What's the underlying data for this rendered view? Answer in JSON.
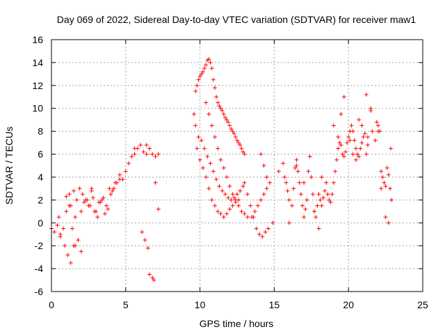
{
  "chart_data": {
    "type": "scatter",
    "title": "Day 069 of 2022, Sidereal Day-to-day VTEC variation (SDTVAR) for receiver maw1",
    "xlabel": "GPS time / hours",
    "ylabel": "SDTVAR / TECUs",
    "xlim": [
      0,
      25
    ],
    "ylim": [
      -6,
      16
    ],
    "xticks": [
      0,
      5,
      10,
      15,
      20,
      25
    ],
    "yticks": [
      -6,
      -4,
      -2,
      0,
      2,
      4,
      6,
      8,
      10,
      12,
      14,
      16
    ],
    "xtick_labels": [
      "0",
      "5",
      "10",
      "15",
      "20",
      "25"
    ],
    "ytick_labels": [
      "-6",
      "-4",
      "-2",
      "0",
      "2",
      "4",
      "6",
      "8",
      "10",
      "12",
      "14",
      "16"
    ],
    "grid": true,
    "marker": "+",
    "color": "#ff0000",
    "series": [
      {
        "name": "maw1",
        "x": [
          0.0,
          0.2,
          0.4,
          0.5,
          0.6,
          0.8,
          1.0,
          1.2,
          1.4,
          1.5,
          1.6,
          1.8,
          2.0,
          2.2,
          2.4,
          2.6,
          2.8,
          3.0,
          3.2,
          3.4,
          3.6,
          3.8,
          4.0,
          4.2,
          4.4,
          4.6,
          4.8,
          5.0,
          5.2,
          5.4,
          5.6,
          5.8,
          6.0,
          6.2,
          6.4,
          6.6,
          6.8,
          7.0,
          7.2,
          6.1,
          6.3,
          6.5,
          6.6,
          6.8,
          6.9,
          7.0,
          7.2,
          1.2,
          1.3,
          1.5,
          1.7,
          1.9,
          2.1,
          2.3,
          2.5,
          2.7,
          2.9,
          3.1,
          3.3,
          3.5,
          3.7,
          3.9,
          4.1,
          4.3,
          0.6,
          0.9,
          1.1,
          1.3,
          1.6,
          1.8,
          2.0,
          1.0,
          2.7,
          4.6,
          5.6,
          6.4,
          9.6,
          9.7,
          9.8,
          9.9,
          10.0,
          10.1,
          10.2,
          10.3,
          10.4,
          10.5,
          10.6,
          10.7,
          10.8,
          10.9,
          11.0,
          11.1,
          11.2,
          11.3,
          11.4,
          11.5,
          11.6,
          11.7,
          11.8,
          11.9,
          12.0,
          12.1,
          12.2,
          12.3,
          12.4,
          12.5,
          12.6,
          12.7,
          12.8,
          12.9,
          13.0,
          9.7,
          9.9,
          10.1,
          10.3,
          10.5,
          10.7,
          10.9,
          11.1,
          11.3,
          11.5,
          11.7,
          11.9,
          12.1,
          12.3,
          12.5,
          12.7,
          12.9,
          9.8,
          10.0,
          10.2,
          10.4,
          10.6,
          10.8,
          11.0,
          11.2,
          11.4,
          11.6,
          11.8,
          12.0,
          12.2,
          12.4,
          12.6,
          10.4,
          10.6,
          10.8,
          11.0,
          11.2,
          11.4,
          11.6,
          11.8,
          12.0,
          12.2,
          12.4,
          12.6,
          12.8,
          13.0,
          13.2,
          13.0,
          13.2,
          13.4,
          13.6,
          13.8,
          14.0,
          14.2,
          14.4,
          14.6,
          13.5,
          13.7,
          13.9,
          14.1,
          14.3,
          14.5,
          14.7,
          14.1,
          14.3,
          14.5,
          14.9,
          15.3,
          15.6,
          15.7,
          15.8,
          15.9,
          16.0,
          16.2,
          16.3,
          16.4,
          16.5,
          16.6,
          16.7,
          16.8,
          16.9,
          17.0,
          17.1,
          17.2,
          17.3,
          17.4,
          17.5,
          17.6,
          17.7,
          17.8,
          17.9,
          18.0,
          18.1,
          18.2,
          18.3,
          18.4,
          18.5,
          18.6,
          18.7,
          18.8,
          18.9,
          19.0,
          19.1,
          19.2,
          19.3,
          19.4,
          19.5,
          19.6,
          19.7,
          19.8,
          19.9,
          20.0,
          20.1,
          20.2,
          20.3,
          20.4,
          20.5,
          20.6,
          20.7,
          20.8,
          20.9,
          21.0,
          21.1,
          21.2,
          21.3,
          21.5,
          21.6,
          21.8,
          21.9,
          22.0,
          22.1,
          22.2,
          22.3,
          22.4,
          22.5,
          22.6,
          22.7,
          22.8,
          22.9,
          22.5,
          22.7,
          22.85,
          20.1,
          20.3,
          20.5,
          20.7,
          20.9,
          19.3,
          19.5,
          19.7,
          21.2,
          21.3,
          21.5,
          22.0,
          22.2,
          16.0,
          16.5,
          17.0,
          17.7,
          18.0,
          18.2,
          19.0
        ],
        "y": [
          -0.5,
          -0.8,
          -0.2,
          0.5,
          -1.0,
          -0.5,
          1.0,
          1.5,
          -0.5,
          -2.0,
          0.5,
          -1.5,
          1.0,
          1.8,
          2.0,
          1.5,
          2.2,
          1.0,
          1.8,
          2.0,
          0.8,
          1.2,
          2.5,
          3.0,
          3.5,
          4.2,
          3.8,
          4.5,
          5.2,
          5.8,
          6.0,
          6.5,
          6.8,
          6.2,
          6.8,
          6.5,
          6.0,
          5.8,
          6.0,
          -0.8,
          -1.5,
          -2.2,
          -4.5,
          -4.8,
          -5.0,
          3.5,
          1.2,
          2.5,
          1.5,
          2.8,
          2.0,
          3.0,
          2.5,
          2.0,
          1.5,
          2.8,
          1.0,
          0.5,
          1.8,
          2.2,
          1.5,
          3.0,
          2.8,
          3.5,
          -1.2,
          -2.0,
          -2.8,
          -3.5,
          -2.0,
          -1.5,
          -2.5,
          2.3,
          3.0,
          3.8,
          6.5,
          6.0,
          9.5,
          11.5,
          12.0,
          12.5,
          12.8,
          13.0,
          13.2,
          13.5,
          13.8,
          14.2,
          14.3,
          14.0,
          13.5,
          12.5,
          11.8,
          11.0,
          10.5,
          10.2,
          10.0,
          9.8,
          9.5,
          9.2,
          9.0,
          8.8,
          8.5,
          8.2,
          8.0,
          7.8,
          7.5,
          7.2,
          7.0,
          6.8,
          6.5,
          6.2,
          6.0,
          8.5,
          7.5,
          7.2,
          6.5,
          5.8,
          5.2,
          4.5,
          3.8,
          3.2,
          2.8,
          2.5,
          2.2,
          2.0,
          2.2,
          2.5,
          2.8,
          3.2,
          6.5,
          5.5,
          4.8,
          4.0,
          3.0,
          2.0,
          1.5,
          1.0,
          0.8,
          0.5,
          0.8,
          1.2,
          1.5,
          1.8,
          2.0,
          10.5,
          9.5,
          8.5,
          7.5,
          6.5,
          5.5,
          4.8,
          4.0,
          3.2,
          2.5,
          2.0,
          1.5,
          1.0,
          0.8,
          0.5,
          3.5,
          2.5,
          1.5,
          0.5,
          -0.5,
          -1.0,
          -1.2,
          -0.8,
          -0.5,
          0.5,
          1.0,
          1.5,
          2.0,
          2.5,
          3.0,
          3.5,
          6.0,
          5.0,
          4.0,
          0.0,
          4.5,
          5.2,
          4.0,
          3.5,
          2.8,
          2.0,
          1.5,
          3.0,
          4.8,
          5.5,
          4.5,
          3.5,
          2.5,
          1.5,
          0.5,
          1.2,
          2.0,
          4.5,
          5.8,
          4.0,
          2.5,
          1.0,
          0.5,
          1.5,
          2.5,
          2.0,
          1.5,
          2.2,
          2.8,
          3.5,
          2.5,
          2.0,
          1.8,
          2.5,
          3.5,
          4.5,
          5.5,
          6.5,
          7.0,
          6.8,
          6.0,
          5.8,
          6.2,
          7.0,
          7.5,
          8.0,
          8.5,
          8.0,
          7.2,
          6.5,
          6.0,
          5.8,
          6.5,
          7.0,
          7.5,
          7.8,
          11.2,
          7.5,
          10.0,
          8.0,
          7.2,
          8.8,
          8.5,
          8.0,
          4.5,
          4.0,
          3.5,
          3.2,
          4.8,
          4.2,
          3.0,
          2.0,
          0.5,
          0.0,
          6.5,
          7.2,
          6.0,
          5.5,
          9.0,
          8.5,
          7.5,
          9.5,
          11.0,
          6.0,
          6.8,
          9.8,
          8.0,
          3.0,
          0.0,
          5.0,
          3.5,
          1.0,
          -0.5,
          4.0,
          8.5
        ]
      }
    ]
  }
}
